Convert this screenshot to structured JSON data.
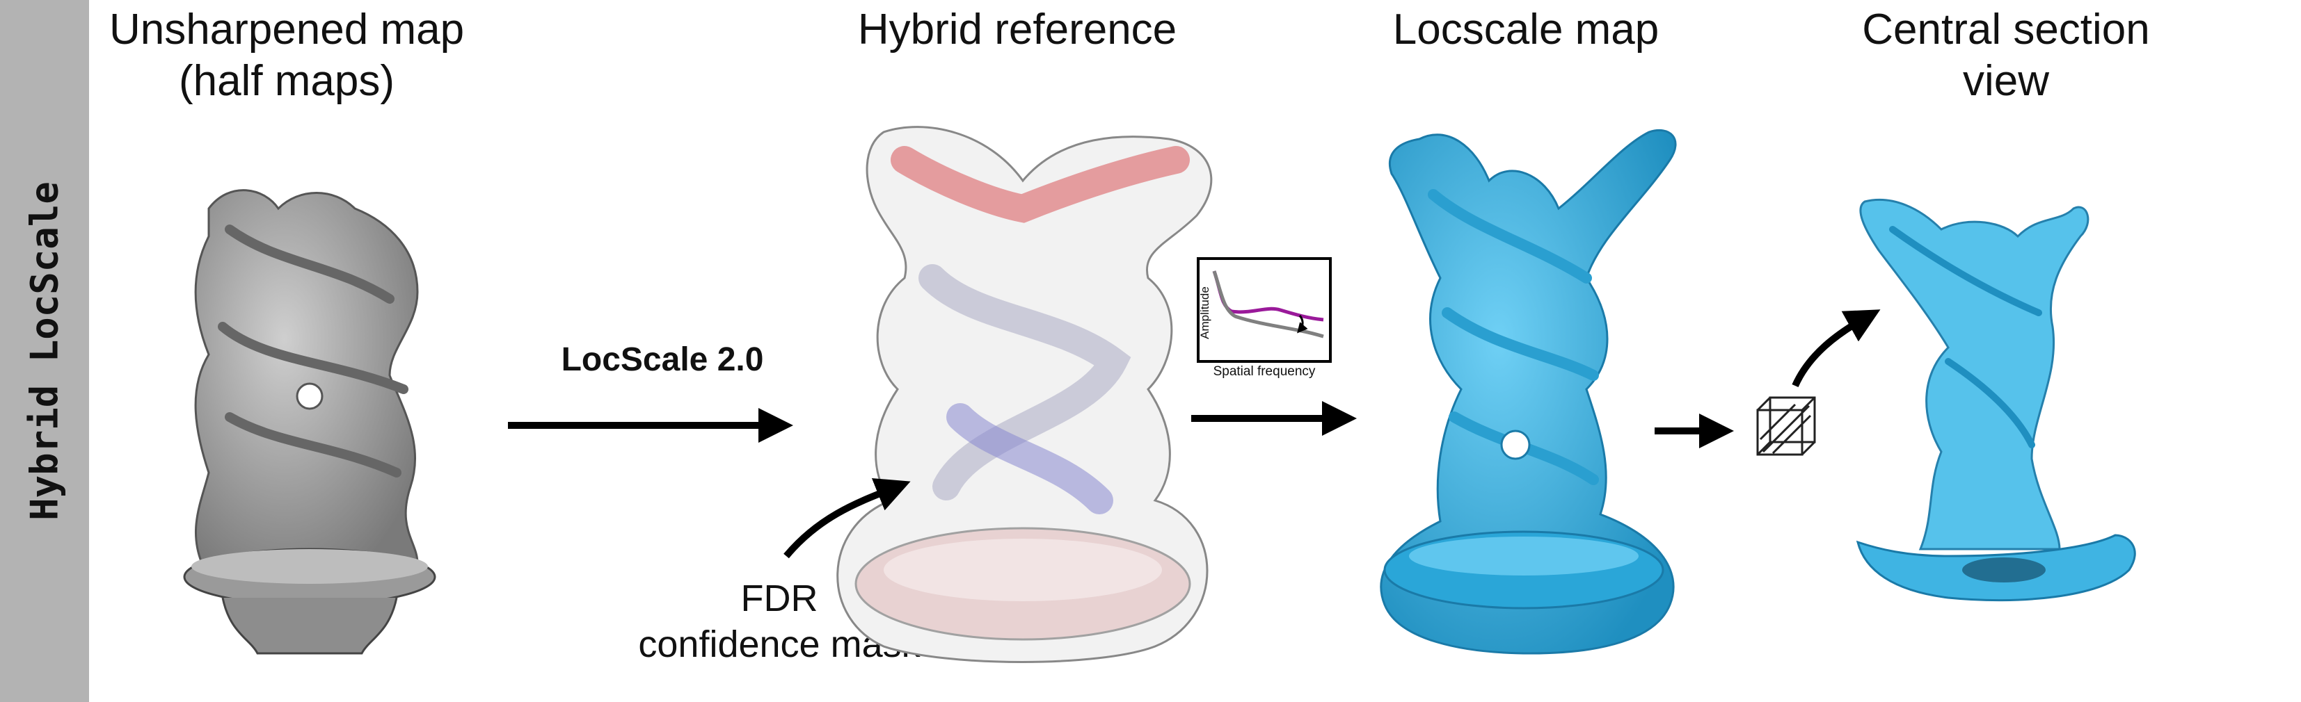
{
  "side_label": "Hybrid LocScale",
  "panels": {
    "unsharpened": {
      "line1": "Unsharpened map",
      "line2": "(half maps)"
    },
    "hybrid": {
      "line1": "Hybrid reference"
    },
    "locscale": {
      "line1": "Locscale map"
    },
    "central": {
      "line1": "Central section",
      "line2": "view"
    }
  },
  "arrow_label": "LocScale 2.0",
  "mask_label": {
    "line1": "FDR",
    "line2": "confidence mask"
  },
  "inset": {
    "ylabel": "Amplitude",
    "xlabel": "Spatial frequency"
  },
  "colors": {
    "gray_map": "#a9a9a9",
    "blue_map": "#3fb4e3",
    "red_domain": "#d9555a",
    "purple_domain": "#8888d0",
    "purple_curve": "#9a1a9a",
    "gray_curve": "#808080"
  }
}
